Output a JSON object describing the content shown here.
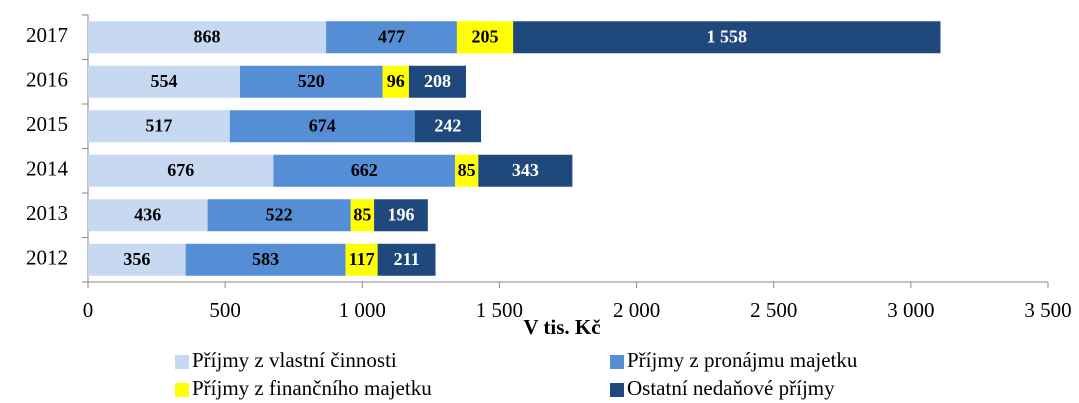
{
  "chart_data": {
    "type": "stacked-barh",
    "xlabel": "V tis. Kč",
    "categories": [
      "2017",
      "2016",
      "2015",
      "2014",
      "2013",
      "2012"
    ],
    "series": [
      {
        "name": "Příjmy z vlastní činnosti",
        "color": "#c6d9f1",
        "label_color": "#000000",
        "values": [
          868,
          554,
          517,
          676,
          436,
          356
        ]
      },
      {
        "name": "Příjmy z pronájmu majetku",
        "color": "#558ed5",
        "label_color": "#000000",
        "values": [
          477,
          520,
          674,
          662,
          522,
          583
        ]
      },
      {
        "name": "Příjmy z finančního majetku",
        "color": "#ffff00",
        "label_color": "#000000",
        "values": [
          205,
          96,
          null,
          85,
          85,
          117
        ]
      },
      {
        "name": "Ostatní nedaňové příjmy",
        "color": "#1f497d",
        "label_color": "#ffffff",
        "values": [
          1558,
          208,
          242,
          343,
          196,
          211
        ],
        "value_labels": [
          "1 558",
          "208",
          "242",
          "343",
          "196",
          "211"
        ]
      }
    ],
    "xlim": [
      0,
      3500
    ],
    "xticks": [
      0,
      500,
      {
        "value": 1000,
        "label": "1 000"
      },
      {
        "value": 1500,
        "label": "1 500"
      },
      {
        "value": 2000,
        "label": "2 000"
      },
      {
        "value": 2500,
        "label": "2 500"
      },
      {
        "value": 3000,
        "label": "3 000"
      },
      {
        "value": 3500,
        "label": "3 500"
      }
    ]
  }
}
